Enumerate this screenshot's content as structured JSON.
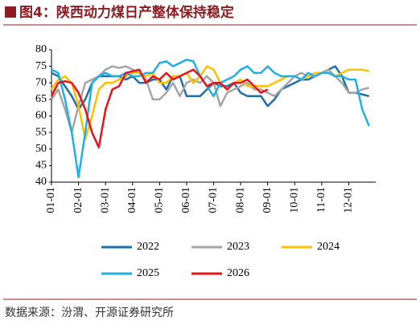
{
  "title": "图4：陕西动力煤日产整体保持稳定",
  "source": "数据来源：汾渭、开源证券研究所",
  "chart_data": {
    "type": "line",
    "categories": [
      "01-01",
      null,
      null,
      null,
      "02-01",
      null,
      null,
      null,
      "03-01",
      null,
      null,
      null,
      "04-01",
      null,
      null,
      null,
      "05-01",
      null,
      null,
      null,
      "06-01",
      null,
      null,
      null,
      "07-01",
      null,
      null,
      null,
      "08-01",
      null,
      null,
      null,
      "09-01",
      null,
      null,
      null,
      "10-01",
      null,
      null,
      null,
      "11-01",
      null,
      null,
      null,
      "12-01",
      null,
      null,
      null
    ],
    "ylim": [
      40,
      80
    ],
    "yticks": [
      40,
      45,
      50,
      55,
      60,
      65,
      70,
      75,
      80
    ],
    "series": [
      {
        "name": "2022",
        "color": "#1f6faa",
        "values": [
          73,
          72,
          69,
          66,
          62,
          65,
          70,
          72,
          72,
          72,
          72,
          71,
          72,
          70,
          70,
          71,
          71,
          68,
          72,
          72,
          66,
          66,
          66,
          68,
          70,
          69,
          69,
          70,
          67,
          66,
          66,
          66,
          63,
          65,
          68,
          69,
          70,
          71,
          71,
          72,
          73,
          74,
          75,
          72,
          67,
          67,
          66.5,
          66
        ]
      },
      {
        "name": "2023",
        "color": "#a6a6a6",
        "values": [
          65,
          68,
          62,
          55,
          63,
          70,
          71,
          72,
          74,
          75,
          74.5,
          75,
          74,
          73,
          71,
          65,
          65,
          67,
          70,
          66,
          70,
          71,
          70,
          72,
          70,
          63,
          67,
          68,
          69,
          70,
          68,
          68,
          67,
          66,
          68,
          70,
          72,
          73,
          72,
          72,
          73,
          74,
          72,
          70,
          67,
          67,
          68,
          68.5
        ]
      },
      {
        "name": "2024",
        "color": "#ffc000",
        "values": [
          68,
          71,
          72,
          70,
          63,
          53,
          60,
          68,
          70,
          70,
          71,
          72,
          73,
          73,
          72,
          73,
          70,
          70,
          72,
          72,
          73,
          70,
          72,
          75,
          74,
          70,
          68,
          70,
          71,
          69,
          69,
          69,
          69,
          70,
          71,
          72,
          72,
          71,
          72,
          73,
          73,
          73,
          72,
          73,
          74,
          74,
          74,
          73.5
        ]
      },
      {
        "name": "2025",
        "color": "#1fb0e6",
        "values": [
          74,
          73,
          65,
          55,
          41.5,
          55,
          70,
          72,
          73,
          72,
          72,
          73,
          72,
          72,
          73,
          73,
          76,
          76.5,
          75,
          76,
          77,
          76.5,
          72,
          69,
          66,
          70,
          71,
          72,
          74,
          75,
          73,
          73,
          75,
          73,
          72,
          72,
          72,
          71,
          73,
          72,
          73,
          73,
          72,
          72,
          71,
          71,
          62,
          57
        ]
      },
      {
        "name": "2026",
        "color": "#e8141b",
        "values": [
          66,
          70,
          70.5,
          70,
          67,
          62,
          55,
          50.5,
          62,
          68,
          69,
          73,
          73.5,
          74,
          70,
          72,
          71,
          73,
          71,
          72,
          73,
          74,
          72,
          69,
          70,
          70,
          68,
          70,
          70,
          71,
          69,
          67,
          68,
          null,
          null,
          null,
          null,
          null,
          null,
          null,
          null,
          null,
          null,
          null,
          null,
          null,
          null,
          null
        ]
      }
    ]
  }
}
